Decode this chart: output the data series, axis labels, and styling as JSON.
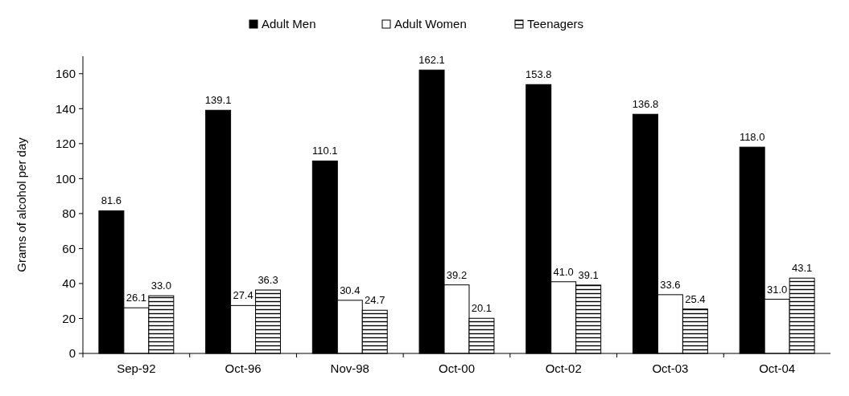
{
  "chart_data": {
    "type": "bar",
    "ylabel": "Grams of alcohol per day",
    "categories": [
      "Sep-92",
      "Oct-96",
      "Nov-98",
      "Oct-00",
      "Oct-02",
      "Oct-03",
      "Oct-04"
    ],
    "series": [
      {
        "name": "Adult Men",
        "color": "#000000",
        "values": [
          81.6,
          139.1,
          110.1,
          162.1,
          153.8,
          136.8,
          118.0
        ],
        "value_labels": [
          "81.6",
          "139.1",
          "110.1",
          "162.1",
          "153.8",
          "136.8",
          "118.0"
        ]
      },
      {
        "name": "Adult Women",
        "color": "#ffffff",
        "values": [
          26.1,
          27.4,
          30.4,
          39.2,
          41.0,
          33.6,
          31.0
        ],
        "value_labels": [
          "26.1",
          "27.4",
          "30.4",
          "39.2",
          "41.0",
          "33.6",
          "31.0"
        ]
      },
      {
        "name": "Teenagers",
        "color": "#000000",
        "values": [
          33.0,
          36.3,
          24.7,
          20.1,
          39.1,
          25.4,
          43.1
        ],
        "value_labels": [
          "33.0",
          "36.3",
          "24.7",
          "20.1",
          "39.1",
          "25.4",
          "43.1"
        ]
      }
    ],
    "ylim": [
      0,
      170
    ],
    "yticks": [
      0,
      20,
      40,
      60,
      80,
      100,
      120,
      140,
      160
    ],
    "legend": "top",
    "grid": false
  }
}
